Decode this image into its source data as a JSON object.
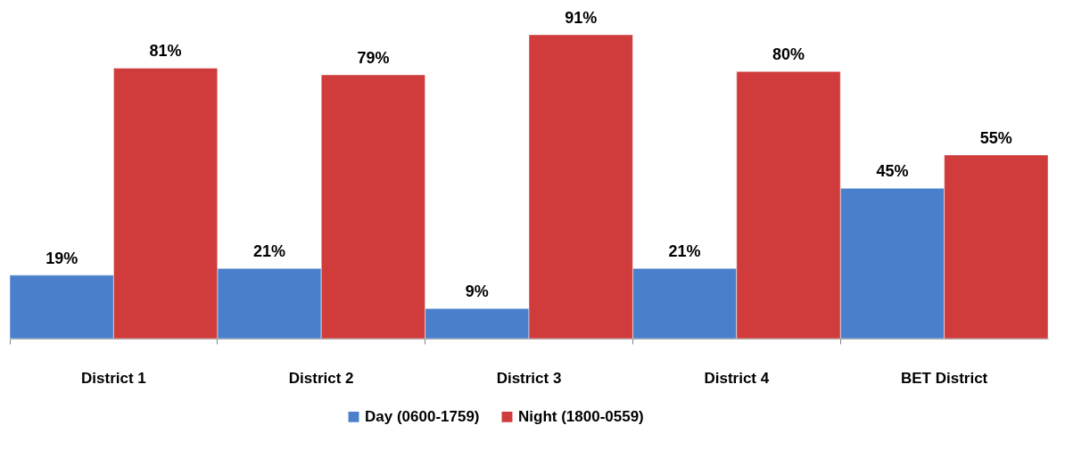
{
  "chart_data": {
    "type": "bar",
    "categories": [
      "District 1",
      "District 2",
      "District 3",
      "District 4",
      "BET District"
    ],
    "series": [
      {
        "name": "Day (0600-1759)",
        "color": "#4a7fcb",
        "values": [
          19,
          21,
          9,
          21,
          45
        ],
        "value_labels": [
          "19%",
          "21%",
          "9%",
          "21%",
          "45%"
        ]
      },
      {
        "name": "Night (1800-0559)",
        "color": "#d03b3b",
        "values": [
          81,
          79,
          91,
          80,
          55
        ],
        "value_labels": [
          "81%",
          "79%",
          "91%",
          "80%",
          "55%"
        ]
      }
    ],
    "tick_labels": "x",
    "legend": "bottom"
  }
}
